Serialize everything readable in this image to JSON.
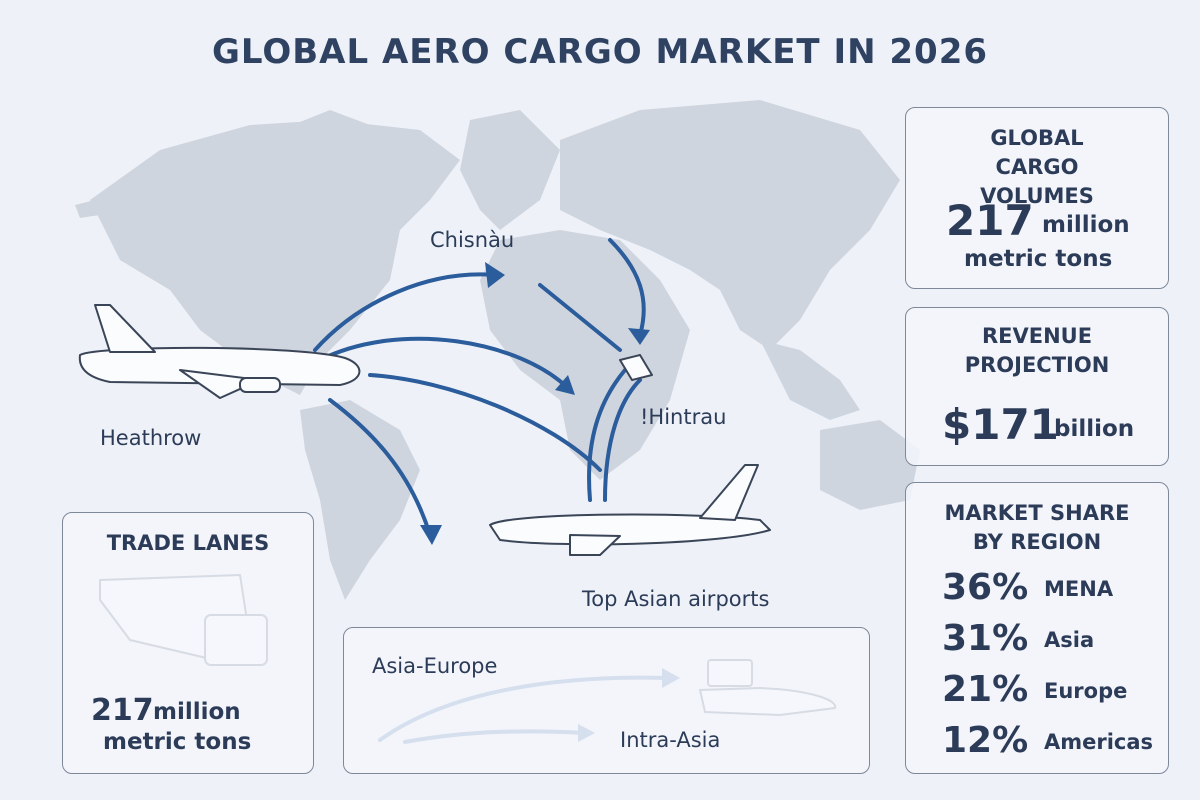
{
  "header": {
    "title": "GLOBAL AERO CARGO MARKET IN 2026"
  },
  "map": {
    "labels": [
      "Chisnàu",
      "!Hintrau",
      "Heathrow",
      "Top Asian airports"
    ]
  },
  "cards": {
    "volumes": {
      "heading": "GLOBAL CARGO VOLUMES",
      "value": "217",
      "unit_line1": "million",
      "unit_line2": "metric tons"
    },
    "revenue": {
      "heading": "REVENUE PROJECTION",
      "value": "$171",
      "unit": "billion"
    },
    "market_share": {
      "heading": "MARKET SHARE BY REGION",
      "rows": [
        {
          "value": "36%",
          "region": "MENA"
        },
        {
          "value": "31%",
          "region": "Asia"
        },
        {
          "value": "21%",
          "region": "Europe"
        },
        {
          "value": "12%",
          "region": "Americas"
        }
      ]
    }
  },
  "trade_lanes": {
    "heading": "TRADE LANES",
    "value": "217",
    "unit_line1": "million",
    "unit_line2": "metric tons"
  },
  "lanes": {
    "items": [
      "Asia-Europe",
      "Intra-Asia"
    ]
  }
}
